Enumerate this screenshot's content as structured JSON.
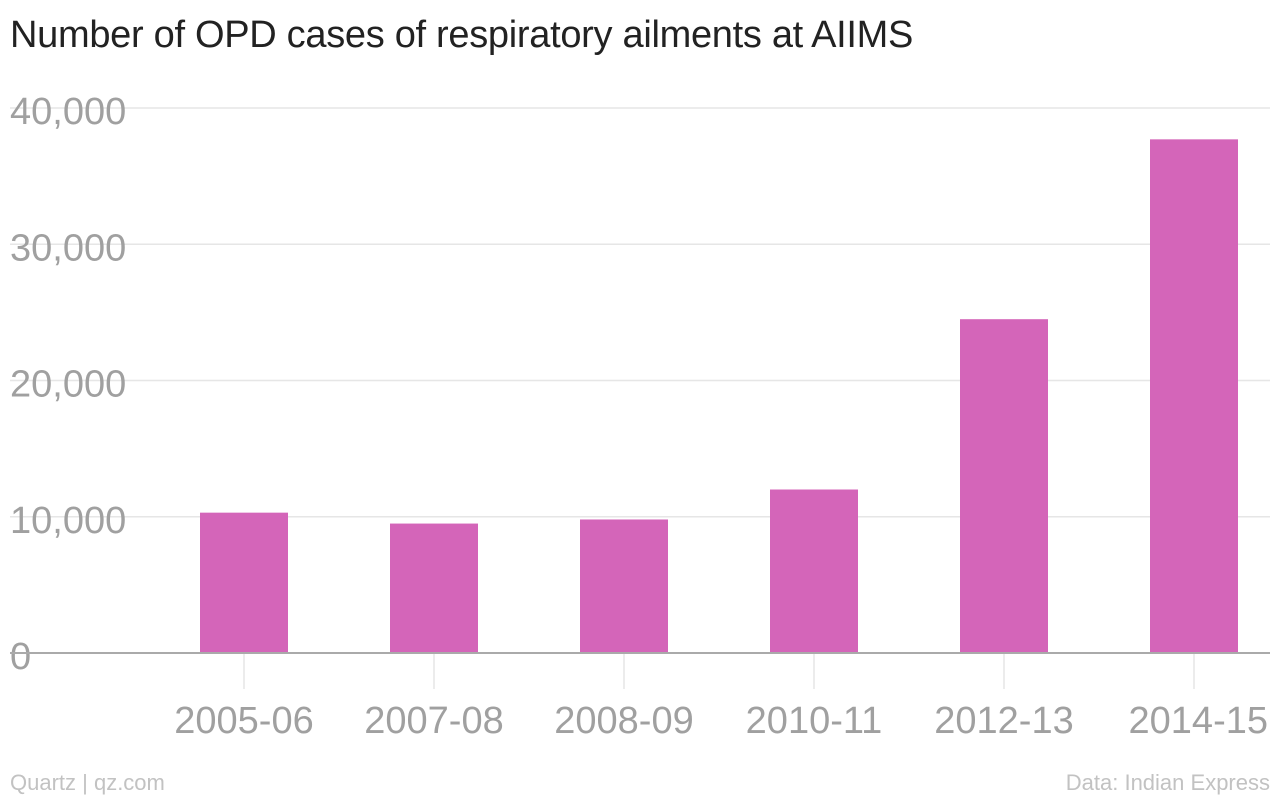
{
  "chart_data": {
    "type": "bar",
    "title": "Number of OPD cases of respiratory ailments at AIIMS",
    "categories": [
      "2005-06",
      "2007-08",
      "2008-09",
      "2010-11",
      "2012-13",
      "2014-15"
    ],
    "values": [
      10300,
      9500,
      9800,
      12000,
      24500,
      37700
    ],
    "ylim": [
      0,
      40000
    ],
    "yticks": [
      0,
      10000,
      20000,
      30000,
      40000
    ],
    "ytick_labels": [
      "0",
      "10,000",
      "20,000",
      "30,000",
      "40,000"
    ],
    "xlabel": "",
    "ylabel": "",
    "grid": true,
    "legend": "none",
    "colors": {
      "bar": "#d465b9",
      "grid": "#e6e6e6",
      "axis": "#aaaaaa",
      "tick_label": "#a0a0a0"
    }
  },
  "footer": {
    "source_left": "Quartz | qz.com",
    "source_right": "Data: Indian Express"
  }
}
